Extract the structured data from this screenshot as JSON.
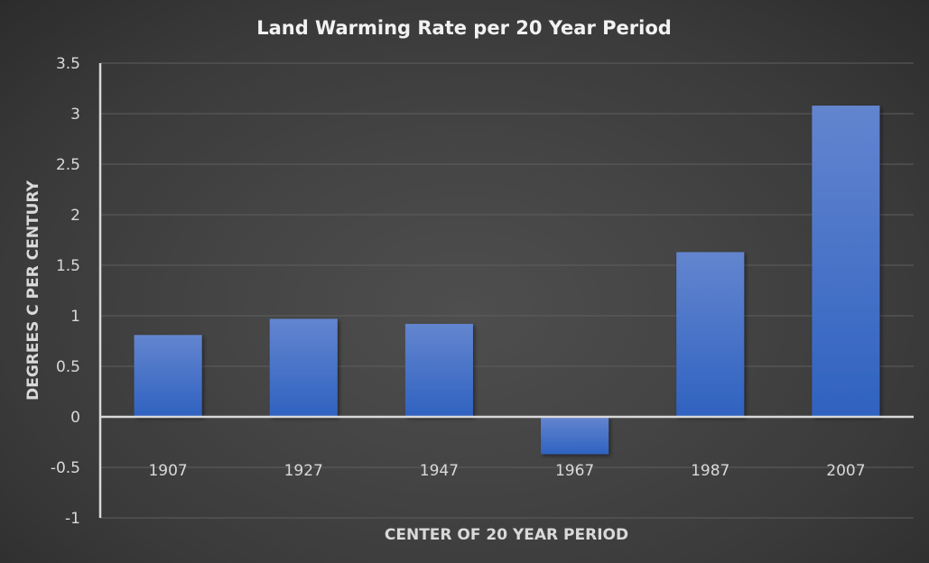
{
  "chart_data": {
    "type": "bar",
    "title": "Land Warming Rate per 20 Year Period",
    "xlabel": "CENTER OF 20 YEAR PERIOD",
    "ylabel": "DEGREES C PER CENTURY",
    "categories": [
      "1907",
      "1927",
      "1947",
      "1967",
      "1987",
      "2007"
    ],
    "values": [
      0.81,
      0.97,
      0.92,
      -0.37,
      1.63,
      3.08
    ],
    "ylim": [
      -1,
      3.5
    ],
    "yticks": [
      -1,
      -0.5,
      0,
      0.5,
      1,
      1.5,
      2,
      2.5,
      3,
      3.5
    ],
    "ytick_labels": [
      "-1",
      "-0.5",
      "0",
      "0.5",
      "1",
      "1.5",
      "2",
      "2.5",
      "3",
      "3.5"
    ],
    "grid": true,
    "legend": "none",
    "colors": {
      "bar_top": "#6385cf",
      "bar_bottom": "#2f62c0",
      "grid": "#5e5e5e",
      "axis": "#d9d9d9",
      "text": "#d9d9d9"
    }
  }
}
